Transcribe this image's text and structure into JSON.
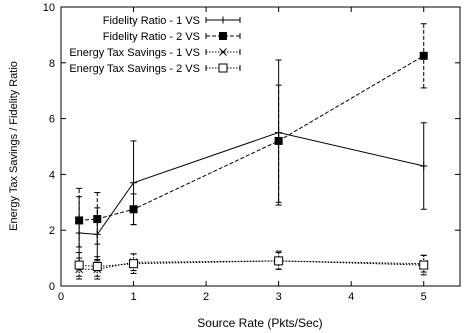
{
  "chart_data": {
    "type": "line",
    "xlabel": "Source Rate (Pkts/Sec)",
    "ylabel": "Energy Tax Savings / Fidelity Ratio",
    "xlim": [
      0,
      5.5
    ],
    "ylim": [
      0,
      10
    ],
    "x_ticks": [
      "0",
      "1",
      "2",
      "3",
      "4",
      "5"
    ],
    "y_ticks": [
      "0",
      "2",
      "4",
      "6",
      "8",
      "10"
    ],
    "grid": false,
    "legend_position": "top-left",
    "series": [
      {
        "name": "Fidelity Ratio - 1 VS",
        "marker": "plus",
        "line_style": "solid",
        "points": [
          {
            "x": 0.25,
            "y": 1.9,
            "low": 0.6,
            "high": 3.2
          },
          {
            "x": 0.5,
            "y": 1.85,
            "low": 0.9,
            "high": 2.8
          },
          {
            "x": 1.0,
            "y": 3.7,
            "low": 2.2,
            "high": 5.2
          },
          {
            "x": 3.0,
            "y": 5.5,
            "low": 2.9,
            "high": 8.1
          },
          {
            "x": 5.0,
            "y": 4.3,
            "low": 2.75,
            "high": 5.85
          }
        ]
      },
      {
        "name": "Fidelity Ratio - 2 VS",
        "marker": "filled-square",
        "line_style": "dashed",
        "points": [
          {
            "x": 0.25,
            "y": 2.35,
            "low": 1.4,
            "high": 3.5
          },
          {
            "x": 0.5,
            "y": 2.4,
            "low": 1.5,
            "high": 3.35
          },
          {
            "x": 1.0,
            "y": 2.75,
            "low": 2.2,
            "high": 3.3
          },
          {
            "x": 3.0,
            "y": 5.2,
            "low": 3.0,
            "high": 7.2
          },
          {
            "x": 5.0,
            "y": 8.25,
            "low": 7.1,
            "high": 9.4
          }
        ]
      },
      {
        "name": "Energy Tax Savings - 1 VS",
        "marker": "cross",
        "line_style": "dotted",
        "points": [
          {
            "x": 0.25,
            "y": 0.6,
            "low": 0.25,
            "high": 1.0
          },
          {
            "x": 0.5,
            "y": 0.6,
            "low": 0.25,
            "high": 0.95
          },
          {
            "x": 1.0,
            "y": 0.85,
            "low": 0.55,
            "high": 1.15
          },
          {
            "x": 3.0,
            "y": 0.9,
            "low": 0.6,
            "high": 1.2
          },
          {
            "x": 5.0,
            "y": 0.8,
            "low": 0.5,
            "high": 1.1
          }
        ]
      },
      {
        "name": "Energy Tax Savings - 2 VS",
        "marker": "open-square",
        "line_style": "dotted",
        "points": [
          {
            "x": 0.25,
            "y": 0.75,
            "low": 0.35,
            "high": 1.2
          },
          {
            "x": 0.5,
            "y": 0.7,
            "low": 0.35,
            "high": 1.05
          },
          {
            "x": 1.0,
            "y": 0.8,
            "low": 0.45,
            "high": 1.15
          },
          {
            "x": 3.0,
            "y": 0.9,
            "low": 0.6,
            "high": 1.25
          },
          {
            "x": 5.0,
            "y": 0.75,
            "low": 0.4,
            "high": 1.1
          }
        ]
      }
    ]
  }
}
